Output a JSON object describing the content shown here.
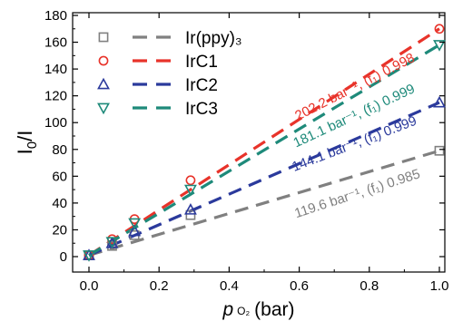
{
  "chart_data": {
    "type": "scatter",
    "xlabel_symbol": "p",
    "xlabel_subscript": "O₂",
    "xlabel_unit": "(bar)",
    "ylabel_main": "I",
    "ylabel_sub": "0",
    "ylabel_tail": "/I",
    "xlim": [
      0,
      1.0
    ],
    "ylim": [
      0,
      180
    ],
    "xticks": [
      "0.0",
      "0.2",
      "0.4",
      "0.6",
      "0.8",
      "1.0"
    ],
    "yticks": [
      "0",
      "20",
      "40",
      "60",
      "80",
      "100",
      "120",
      "140",
      "160",
      "180"
    ],
    "grid": false,
    "legend_position": "top-left",
    "series": [
      {
        "name": "Ir(ppy)₃",
        "color": "#808080",
        "marker": "square",
        "x": [
          0.0,
          0.066,
          0.13,
          0.29,
          1.0
        ],
        "y": [
          1,
          8,
          16,
          31,
          79
        ],
        "fit_y_at_1": 79,
        "annotation": "119.6 bar⁻¹, (f₁) 0.985"
      },
      {
        "name": "IrC1",
        "color": "#e8332a",
        "marker": "circle",
        "x": [
          0.0,
          0.066,
          0.13,
          0.29,
          1.0
        ],
        "y": [
          1,
          13,
          28,
          57,
          170
        ],
        "fit_y_at_1": 170,
        "annotation": "202.2 bar⁻¹, (f₁) 0.998"
      },
      {
        "name": "IrC2",
        "color": "#2b3a9c",
        "marker": "triangle-up",
        "x": [
          0.0,
          0.066,
          0.13,
          0.29,
          1.0
        ],
        "y": [
          1,
          10,
          19,
          35,
          115
        ],
        "fit_y_at_1": 115,
        "annotation": "144.1 bar⁻¹, (f₁) 0.999"
      },
      {
        "name": "IrC3",
        "color": "#1e8a7a",
        "marker": "triangle-down",
        "x": [
          0.0,
          0.066,
          0.13,
          0.29,
          1.0
        ],
        "y": [
          1,
          11,
          25,
          50,
          158
        ],
        "fit_y_at_1": 158,
        "annotation": "181.1 bar⁻¹, (f₁) 0.999"
      }
    ]
  }
}
